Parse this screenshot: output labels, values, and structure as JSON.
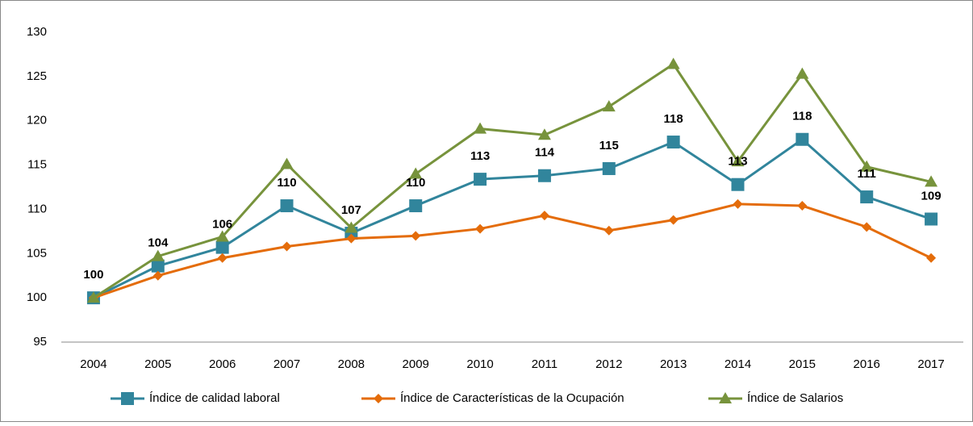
{
  "chart_data": {
    "type": "line",
    "categories": [
      "2004",
      "2005",
      "2006",
      "2007",
      "2008",
      "2009",
      "2010",
      "2011",
      "2012",
      "2013",
      "2014",
      "2015",
      "2016",
      "2017"
    ],
    "series": [
      {
        "name": "Índice de calidad laboral",
        "color": "#31859c",
        "marker": "square",
        "values": [
          100,
          103.6,
          105.7,
          110.4,
          107.3,
          110.4,
          113.4,
          113.8,
          114.6,
          117.6,
          112.8,
          117.9,
          111.4,
          108.9
        ],
        "value_labels": [
          "100",
          "104",
          "106",
          "110",
          "107",
          "110",
          "113",
          "114",
          "115",
          "118",
          "113",
          "118",
          "111",
          "109"
        ]
      },
      {
        "name": "Índice de Características de la Ocupación",
        "color": "#e46c0a",
        "marker": "diamond",
        "values": [
          100,
          102.5,
          104.5,
          105.8,
          106.7,
          107.0,
          107.8,
          109.3,
          107.6,
          108.8,
          110.6,
          110.4,
          108.0,
          104.5
        ]
      },
      {
        "name": "Índice de Salarios",
        "color": "#77933c",
        "marker": "triangle",
        "values": [
          100,
          104.7,
          106.9,
          115.1,
          107.9,
          114.0,
          119.1,
          118.4,
          121.6,
          126.4,
          115.4,
          125.3,
          114.8,
          113.1
        ]
      }
    ],
    "ylim": [
      95,
      130
    ],
    "yticks": [
      95,
      100,
      105,
      110,
      115,
      120,
      125,
      130
    ],
    "grid": false,
    "legend": "bottom"
  }
}
